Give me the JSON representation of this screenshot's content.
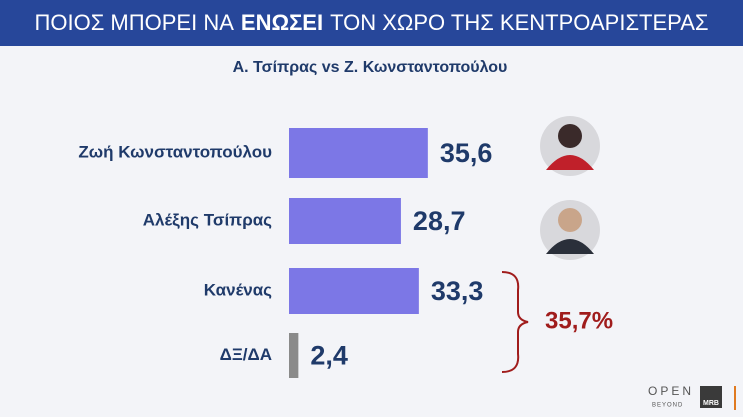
{
  "chart_data": {
    "type": "bar",
    "orientation": "horizontal",
    "title": [
      "ΠΟΙΟΣ  ΜΠΟΡΕΙ ΝΑ",
      "ΕΝΩΣΕΙ",
      "ΤΟΝ ΧΩΡΟ ΤΗΣ ΚΕΝΤΡΟΑΡΙΣΤΕΡΑΣ"
    ],
    "subtitle": "Α. Τσίπρας vs Ζ. Κωνσταντοπούλου",
    "categories": [
      "Ζωή Κωνσταντοπούλου",
      "Αλέξης Τσίπρας",
      "Κανένας",
      "ΔΞ/ΔΑ"
    ],
    "values": [
      35.6,
      28.7,
      33.3,
      2.4
    ],
    "value_labels": [
      "35,6",
      "28,7",
      "33,3",
      "2,4"
    ],
    "colors": [
      "#7c77e6",
      "#7c77e6",
      "#7c77e6",
      "#8a8a8a"
    ],
    "annotation": "35,7%",
    "branding": [
      "OPEN",
      "BEYOND",
      "MRB"
    ]
  }
}
